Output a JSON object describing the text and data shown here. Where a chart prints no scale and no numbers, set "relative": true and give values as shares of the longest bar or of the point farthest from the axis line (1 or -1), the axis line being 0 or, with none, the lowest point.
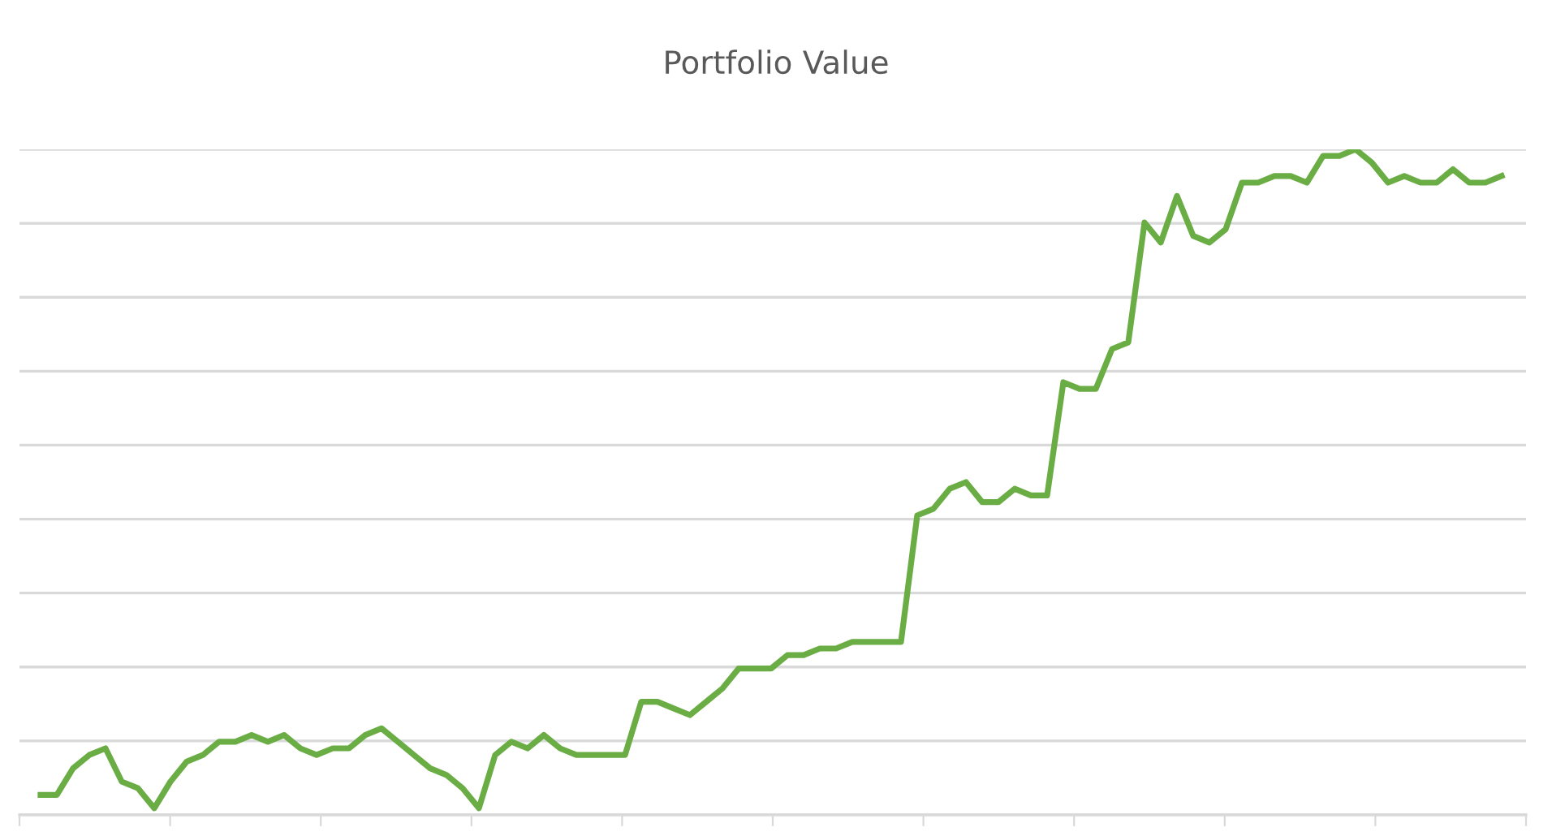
{
  "chart_data": {
    "type": "line",
    "title": "Portfolio Value",
    "relative": true,
    "grid": "y",
    "legend": false,
    "tick_labels": false,
    "marker": "none",
    "line_style": "solid",
    "categories": [
      null,
      null,
      null,
      null,
      null,
      null,
      null,
      null,
      null,
      null,
      null,
      null,
      null,
      null,
      null,
      null,
      null,
      null,
      null,
      null,
      null,
      null,
      null,
      null,
      null,
      null,
      null,
      null,
      null,
      null,
      null,
      null,
      null,
      null,
      null,
      null,
      null,
      null,
      null,
      null,
      null,
      null,
      null,
      null,
      null,
      null,
      null,
      null,
      null,
      null,
      null,
      null,
      null,
      null,
      null,
      null,
      null,
      null,
      null,
      null,
      null,
      null,
      null,
      null,
      null,
      null,
      null,
      null,
      null,
      null,
      null,
      null,
      null,
      null,
      null,
      null,
      null,
      null,
      null,
      null,
      null,
      null,
      null,
      null,
      null,
      null,
      null,
      null,
      null,
      null,
      null
    ],
    "series": [
      {
        "color": "#6aad45",
        "values": [
          0.03,
          0.03,
          0.07,
          0.09,
          0.1,
          0.05,
          0.04,
          0.01,
          0.05,
          0.08,
          0.09,
          0.11,
          0.11,
          0.12,
          0.11,
          0.12,
          0.1,
          0.09,
          0.1,
          0.1,
          0.12,
          0.13,
          0.11,
          0.09,
          0.07,
          0.06,
          0.04,
          0.01,
          0.09,
          0.11,
          0.1,
          0.12,
          0.1,
          0.09,
          0.09,
          0.09,
          0.09,
          0.17,
          0.17,
          0.16,
          0.15,
          0.17,
          0.19,
          0.22,
          0.22,
          0.22,
          0.24,
          0.24,
          0.25,
          0.25,
          0.26,
          0.26,
          0.26,
          0.26,
          0.45,
          0.46,
          0.49,
          0.5,
          0.47,
          0.47,
          0.49,
          0.48,
          0.48,
          0.65,
          0.64,
          0.64,
          0.7,
          0.71,
          0.89,
          0.86,
          0.93,
          0.87,
          0.86,
          0.88,
          0.95,
          0.95,
          0.96,
          0.96,
          0.95,
          0.99,
          0.99,
          1.0,
          0.98,
          0.95,
          0.96,
          0.95,
          0.95,
          0.97,
          0.95,
          0.95,
          0.96
        ]
      }
    ]
  }
}
